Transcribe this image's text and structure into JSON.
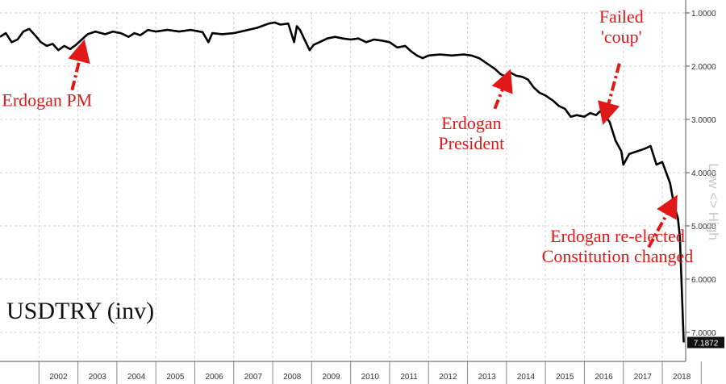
{
  "chart_data": {
    "type": "line",
    "title": "USDTRY (inv)",
    "y_axis": {
      "inverted": true,
      "range": [
        1.0,
        7.2
      ],
      "ticks": [
        {
          "v": 1.0,
          "label": "1.0000"
        },
        {
          "v": 2.0,
          "label": "2.0000"
        },
        {
          "v": 3.0,
          "label": "3.0000"
        },
        {
          "v": 4.0,
          "label": "4.0000"
        },
        {
          "v": 5.0,
          "label": "5.0000"
        },
        {
          "v": 6.0,
          "label": "6.0000"
        },
        {
          "v": 7.0,
          "label": "7.0000"
        }
      ],
      "side_label": "Low <> High",
      "last_value": "7.1872"
    },
    "x_axis": {
      "range": [
        2001.0,
        2018.6
      ],
      "year_labels": [
        "2002",
        "2003",
        "2004",
        "2005",
        "2006",
        "2007",
        "2008",
        "2009",
        "2010",
        "2011",
        "2012",
        "2013",
        "2014",
        "2015",
        "2016",
        "2017",
        "2018"
      ]
    },
    "grid": true,
    "series": [
      {
        "color": "#000000",
        "points": [
          [
            2001.0,
            1.45
          ],
          [
            2001.15,
            1.38
          ],
          [
            2001.3,
            1.55
          ],
          [
            2001.45,
            1.5
          ],
          [
            2001.6,
            1.35
          ],
          [
            2001.75,
            1.3
          ],
          [
            2001.9,
            1.42
          ],
          [
            2002.05,
            1.55
          ],
          [
            2002.2,
            1.62
          ],
          [
            2002.35,
            1.58
          ],
          [
            2002.5,
            1.7
          ],
          [
            2002.65,
            1.62
          ],
          [
            2002.8,
            1.68
          ],
          [
            2002.95,
            1.6
          ],
          [
            2003.1,
            1.5
          ],
          [
            2003.25,
            1.4
          ],
          [
            2003.45,
            1.35
          ],
          [
            2003.7,
            1.4
          ],
          [
            2003.9,
            1.35
          ],
          [
            2004.1,
            1.38
          ],
          [
            2004.3,
            1.45
          ],
          [
            2004.45,
            1.38
          ],
          [
            2004.6,
            1.42
          ],
          [
            2004.8,
            1.32
          ],
          [
            2005.0,
            1.35
          ],
          [
            2005.3,
            1.32
          ],
          [
            2005.6,
            1.35
          ],
          [
            2005.9,
            1.32
          ],
          [
            2006.2,
            1.36
          ],
          [
            2006.35,
            1.55
          ],
          [
            2006.45,
            1.38
          ],
          [
            2006.7,
            1.4
          ],
          [
            2007.0,
            1.38
          ],
          [
            2007.3,
            1.33
          ],
          [
            2007.6,
            1.28
          ],
          [
            2007.9,
            1.2
          ],
          [
            2008.05,
            1.18
          ],
          [
            2008.2,
            1.22
          ],
          [
            2008.4,
            1.2
          ],
          [
            2008.55,
            1.55
          ],
          [
            2008.62,
            1.25
          ],
          [
            2008.7,
            1.32
          ],
          [
            2008.85,
            1.55
          ],
          [
            2008.95,
            1.7
          ],
          [
            2009.05,
            1.6
          ],
          [
            2009.2,
            1.55
          ],
          [
            2009.4,
            1.48
          ],
          [
            2009.6,
            1.45
          ],
          [
            2009.8,
            1.48
          ],
          [
            2010.0,
            1.5
          ],
          [
            2010.2,
            1.48
          ],
          [
            2010.4,
            1.55
          ],
          [
            2010.6,
            1.5
          ],
          [
            2010.8,
            1.52
          ],
          [
            2011.0,
            1.55
          ],
          [
            2011.2,
            1.65
          ],
          [
            2011.4,
            1.62
          ],
          [
            2011.55,
            1.72
          ],
          [
            2011.7,
            1.8
          ],
          [
            2011.85,
            1.85
          ],
          [
            2012.0,
            1.8
          ],
          [
            2012.3,
            1.78
          ],
          [
            2012.6,
            1.8
          ],
          [
            2012.9,
            1.78
          ],
          [
            2013.1,
            1.8
          ],
          [
            2013.3,
            1.85
          ],
          [
            2013.5,
            1.95
          ],
          [
            2013.7,
            2.05
          ],
          [
            2013.85,
            2.15
          ],
          [
            2014.0,
            2.2
          ],
          [
            2014.1,
            2.12
          ],
          [
            2014.25,
            2.18
          ],
          [
            2014.4,
            2.2
          ],
          [
            2014.55,
            2.25
          ],
          [
            2014.7,
            2.4
          ],
          [
            2014.85,
            2.5
          ],
          [
            2015.0,
            2.55
          ],
          [
            2015.2,
            2.65
          ],
          [
            2015.35,
            2.75
          ],
          [
            2015.5,
            2.8
          ],
          [
            2015.65,
            2.95
          ],
          [
            2015.8,
            2.92
          ],
          [
            2016.0,
            2.95
          ],
          [
            2016.15,
            2.88
          ],
          [
            2016.3,
            2.92
          ],
          [
            2016.4,
            2.85
          ],
          [
            2016.5,
            2.9
          ],
          [
            2016.65,
            3.05
          ],
          [
            2016.8,
            3.4
          ],
          [
            2016.95,
            3.6
          ],
          [
            2017.0,
            3.85
          ],
          [
            2017.15,
            3.65
          ],
          [
            2017.35,
            3.6
          ],
          [
            2017.55,
            3.55
          ],
          [
            2017.7,
            3.5
          ],
          [
            2017.85,
            3.85
          ],
          [
            2018.0,
            3.8
          ],
          [
            2018.1,
            4.0
          ],
          [
            2018.2,
            4.2
          ],
          [
            2018.3,
            4.6
          ],
          [
            2018.4,
            4.85
          ],
          [
            2018.45,
            5.2
          ],
          [
            2018.5,
            6.2
          ],
          [
            2018.55,
            7.19
          ]
        ]
      }
    ],
    "annotations": [
      {
        "lines": [
          "Erdogan PM"
        ],
        "anchor": "start",
        "x": 2001.05,
        "y": 2.75,
        "arrow": {
          "from": [
            2002.85,
            2.45
          ],
          "to": [
            2003.1,
            1.7
          ]
        }
      },
      {
        "lines": [
          "Erdogan",
          "President"
        ],
        "anchor": "middle",
        "x": 2013.1,
        "y": 3.18,
        "arrow": {
          "from": [
            2013.7,
            2.8
          ],
          "to": [
            2014.0,
            2.25
          ]
        }
      },
      {
        "lines": [
          "Failed",
          "'coup'"
        ],
        "anchor": "middle",
        "x": 2016.95,
        "y": 1.18,
        "arrow": {
          "from": [
            2016.9,
            1.95
          ],
          "to": [
            2016.55,
            2.9
          ]
        }
      },
      {
        "lines": [
          "Erdogan re-elected",
          "Constitution changed"
        ],
        "anchor": "middle",
        "x": 2016.85,
        "y": 5.3,
        "arrow": {
          "from": [
            2017.65,
            5.4
          ],
          "to": [
            2018.25,
            4.6
          ]
        }
      }
    ],
    "colors": {
      "line": "#000000",
      "annotation": "#e01818",
      "grid": "#d0d0d0",
      "side_label": "#c8c8c8"
    }
  }
}
